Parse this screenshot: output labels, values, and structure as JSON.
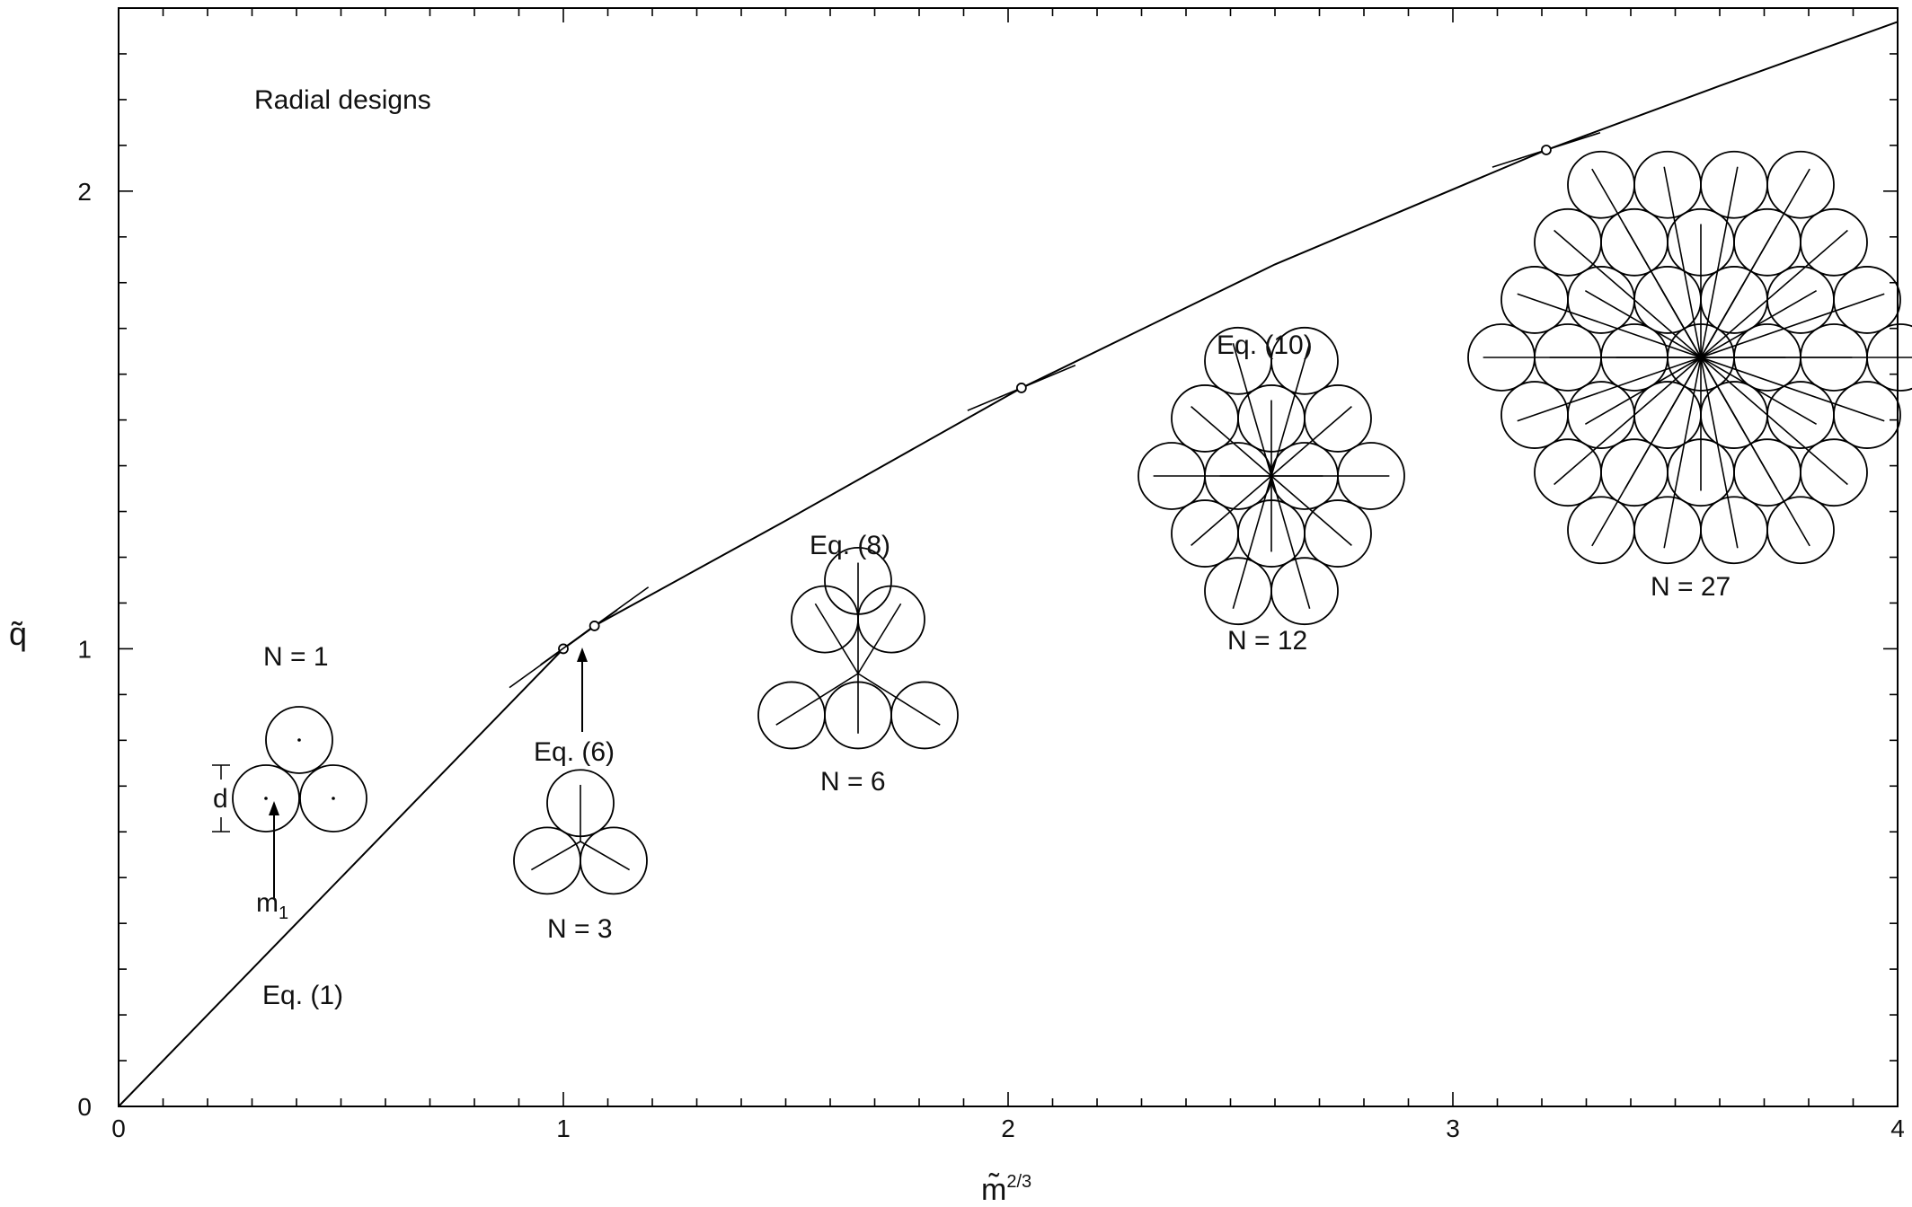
{
  "chart_data": {
    "type": "line",
    "title": "Radial designs",
    "xlabel": "m̃",
    "xlabel_sup": "2/3",
    "ylabel": "q̃",
    "xlim": [
      0,
      4
    ],
    "ylim": [
      0,
      2.4
    ],
    "x_ticks": [
      0,
      1,
      2,
      3,
      4
    ],
    "y_ticks": [
      0,
      1,
      2
    ],
    "x_minor_step": 0.1,
    "y_minor_step": 0.1,
    "grid": false,
    "series": [
      {
        "points": [
          [
            0,
            0
          ],
          [
            1.0,
            1.0
          ],
          [
            1.07,
            1.05
          ],
          [
            1.5,
            1.28
          ],
          [
            2.03,
            1.57
          ],
          [
            2.6,
            1.84
          ],
          [
            3.21,
            2.09
          ],
          [
            3.6,
            2.23
          ],
          [
            4.0,
            2.37
          ]
        ]
      }
    ],
    "markers": [
      [
        1.0,
        1.0
      ],
      [
        1.07,
        1.05
      ],
      [
        2.03,
        1.57
      ],
      [
        3.21,
        2.09
      ]
    ],
    "annotations": {
      "eq1": "Eq. (1)",
      "eq6": "Eq. (6)",
      "eq8": "Eq. (8)",
      "eq10": "Eq. (10)",
      "n1": "N = 1",
      "n3": "N = 3",
      "n6": "N = 6",
      "n12": "N = 12",
      "n27": "N = 27",
      "d": "d",
      "m1": "m",
      "m1_sub": "1"
    },
    "colors": {
      "line": "#000000",
      "text": "#111111"
    }
  }
}
